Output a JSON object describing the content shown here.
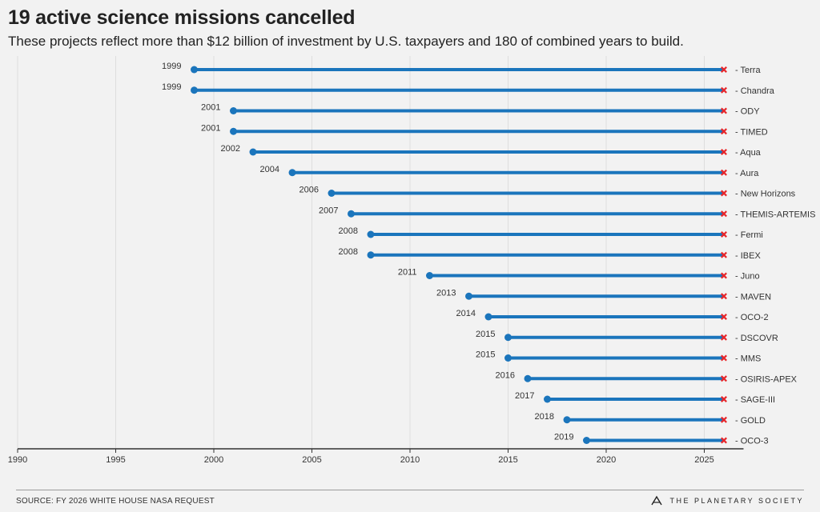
{
  "page": {
    "title": "19 active science missions cancelled",
    "subtitle": "These projects reflect more than $12 billion of investment by U.S. taxpayers and 180 of combined years to build.",
    "source": "SOURCE: FY 2026 WHITE HOUSE NASA REQUEST",
    "logo_text": "THE PLANETARY SOCIETY"
  },
  "colors": {
    "line": "#1b75bc",
    "dot": "#1b75bc",
    "cancel": "#e8262a",
    "axis": "#333333",
    "grid": "#dddddd"
  },
  "chart_data": {
    "type": "dumbbell",
    "title": "19 active science missions cancelled",
    "subtitle": "These projects reflect more than $12 billion of investment by U.S. taxpayers and 180 of combined years to build.",
    "xlim": [
      1990,
      2027
    ],
    "xticks": [
      1990,
      1995,
      2000,
      2005,
      2010,
      2015,
      2020,
      2025
    ],
    "end_year": 2026,
    "end_marker": "cancel-x",
    "grid": "vertical",
    "missions": [
      {
        "name": "Terra",
        "start": 1999
      },
      {
        "name": "Chandra",
        "start": 1999
      },
      {
        "name": "ODY",
        "start": 2001
      },
      {
        "name": "TIMED",
        "start": 2001
      },
      {
        "name": "Aqua",
        "start": 2002
      },
      {
        "name": "Aura",
        "start": 2004
      },
      {
        "name": "New Horizons",
        "start": 2006
      },
      {
        "name": "THEMIS-ARTEMIS",
        "start": 2007
      },
      {
        "name": "Fermi",
        "start": 2008
      },
      {
        "name": "IBEX",
        "start": 2008
      },
      {
        "name": "Juno",
        "start": 2011
      },
      {
        "name": "MAVEN",
        "start": 2013
      },
      {
        "name": "OCO-2",
        "start": 2014
      },
      {
        "name": "DSCOVR",
        "start": 2015
      },
      {
        "name": "MMS",
        "start": 2015
      },
      {
        "name": "OSIRIS-APEX",
        "start": 2016
      },
      {
        "name": "SAGE-III",
        "start": 2017
      },
      {
        "name": "GOLD",
        "start": 2018
      },
      {
        "name": "OCO-3",
        "start": 2019
      }
    ]
  }
}
